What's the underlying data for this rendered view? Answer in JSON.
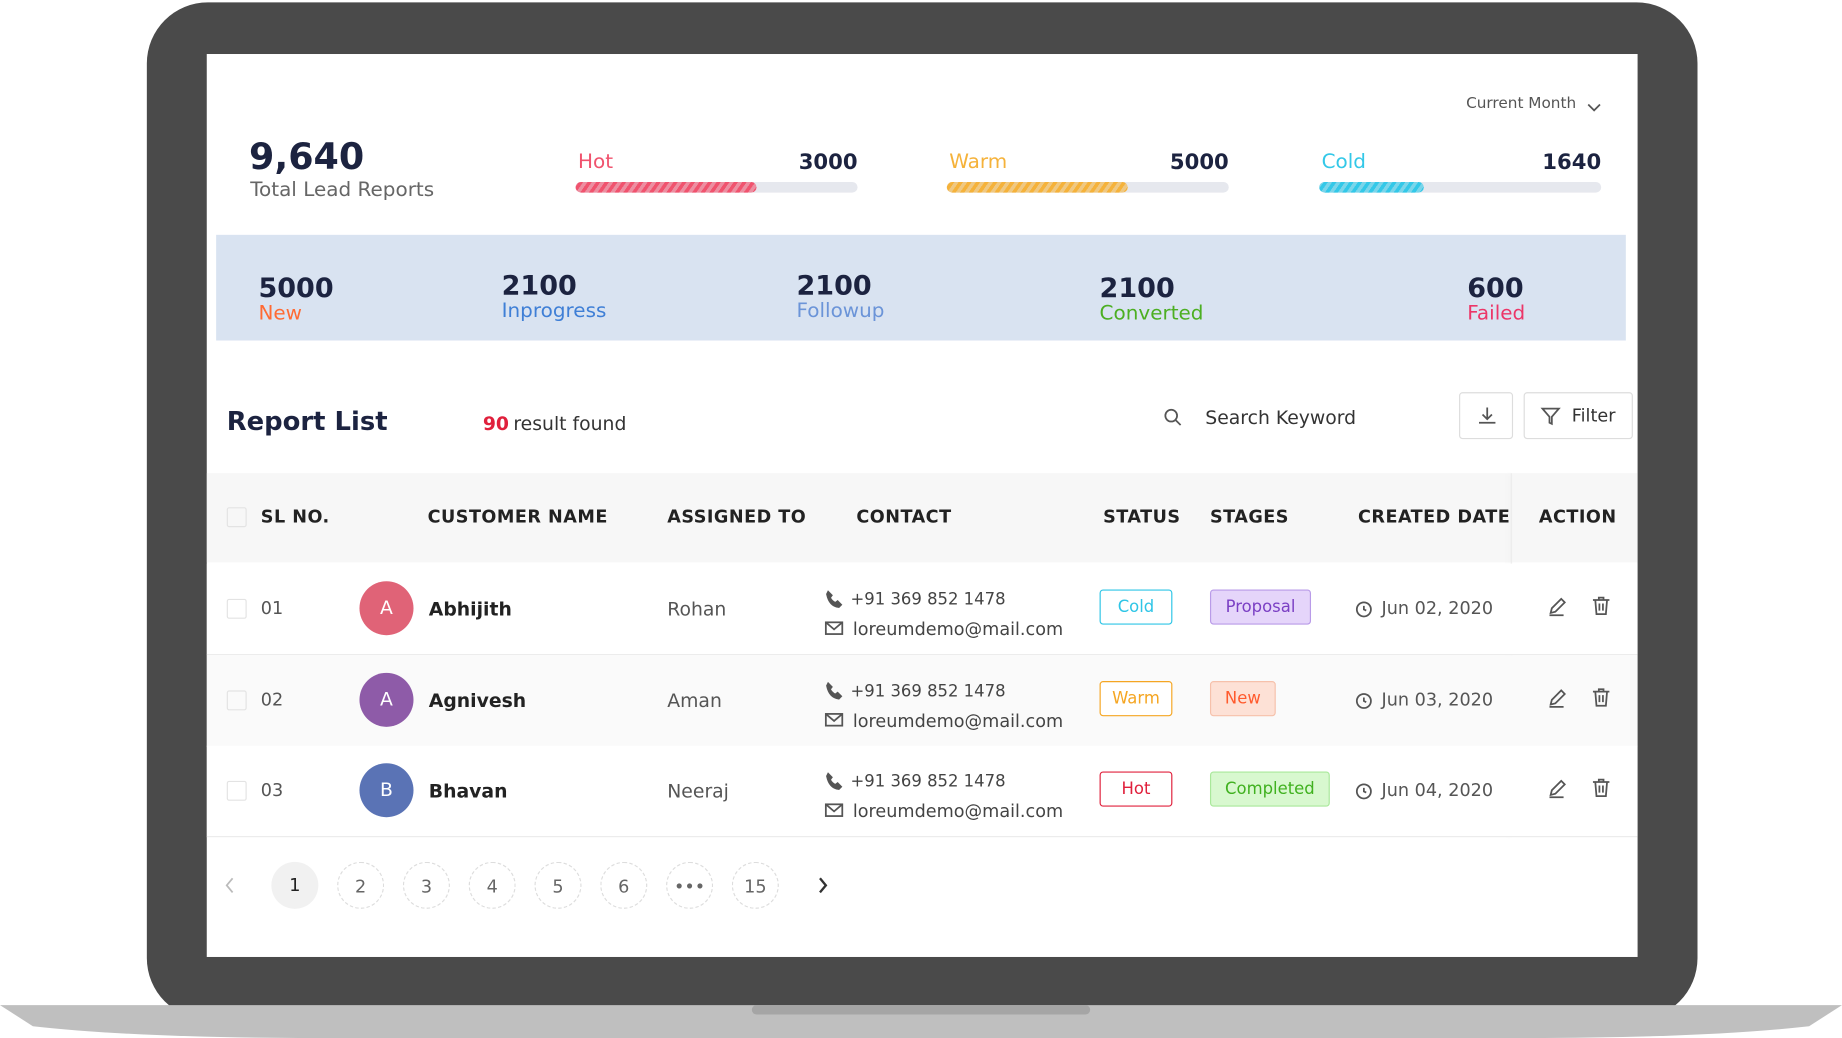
{
  "header": {
    "period": "Current Month",
    "total": "9,640",
    "total_label": "Total Lead Reports"
  },
  "temperature": [
    {
      "label": "Hot",
      "value": "3000"
    },
    {
      "label": "Warm",
      "value": "5000"
    },
    {
      "label": "Cold",
      "value": "1640"
    }
  ],
  "stages_summary": [
    {
      "value": "5000",
      "label": "New"
    },
    {
      "value": "2100",
      "label": "Inprogress"
    },
    {
      "value": "2100",
      "label": "Followup"
    },
    {
      "value": "2100",
      "label": "Converted"
    },
    {
      "value": "600",
      "label": "Failed"
    }
  ],
  "list": {
    "title": "Report List",
    "count": "90",
    "count_text": "result found",
    "search_placeholder": "Search Keyword",
    "filter": "Filter"
  },
  "table": {
    "headers": [
      "SL NO.",
      "CUSTOMER NAME",
      "ASSIGNED TO",
      "CONTACT",
      "STATUS",
      "STAGES",
      "CREATED DATE",
      "ACTION"
    ],
    "rows": [
      {
        "sl": "01",
        "initial": "A",
        "name": "Abhijith",
        "assigned": "Rohan",
        "phone": "+91 369 852 1478",
        "email": "loreumdemo@mail.com",
        "status": "Cold",
        "stage": "Proposal",
        "date": "Jun 02, 2020"
      },
      {
        "sl": "02",
        "initial": "A",
        "name": "Agnivesh",
        "assigned": "Aman",
        "phone": "+91 369 852 1478",
        "email": "loreumdemo@mail.com",
        "status": "Warm",
        "stage": "New",
        "date": "Jun 03, 2020"
      },
      {
        "sl": "03",
        "initial": "B",
        "name": "Bhavan",
        "assigned": "Neeraj",
        "phone": "+91 369 852 1478",
        "email": "loreumdemo@mail.com",
        "status": "Hot",
        "stage": "Completed",
        "date": "Jun 04, 2020"
      }
    ]
  },
  "pagination": [
    "1",
    "2",
    "3",
    "4",
    "5",
    "6",
    "•••",
    "15"
  ]
}
